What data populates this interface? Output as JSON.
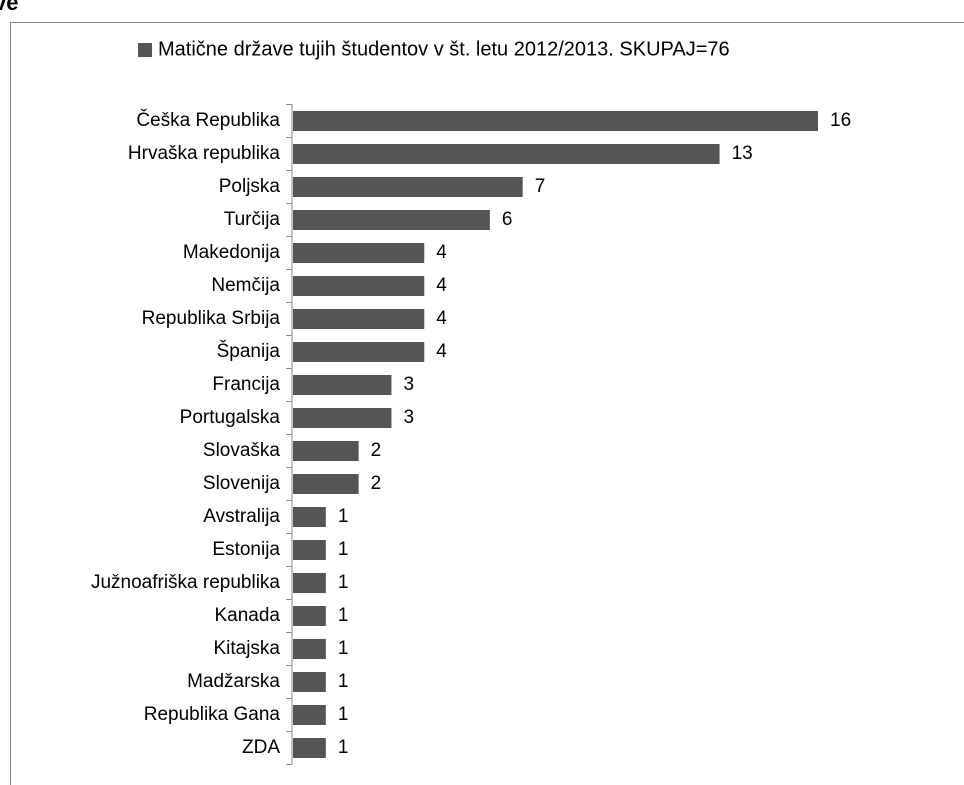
{
  "heading": "ve",
  "chart_data": {
    "type": "bar",
    "orientation": "horizontal",
    "legend": "Matične države tujih študentov v št. letu 2012/2013. SKUPAJ=76",
    "categories": [
      "Češka Republika",
      "Hrvaška republika",
      "Poljska",
      "Turčija",
      "Makedonija",
      "Nemčija",
      "Republika Srbija",
      "Španija",
      "Francija",
      "Portugalska",
      "Slovaška",
      "Slovenija",
      "Avstralija",
      "Estonija",
      "Južnoafriška republika",
      "Kanada",
      "Kitajska",
      "Madžarska",
      "Republika Gana",
      "ZDA"
    ],
    "values": [
      16,
      13,
      7,
      6,
      4,
      4,
      4,
      4,
      3,
      3,
      2,
      2,
      1,
      1,
      1,
      1,
      1,
      1,
      1,
      1
    ],
    "color": "#555555",
    "xlim": [
      0,
      16
    ]
  }
}
